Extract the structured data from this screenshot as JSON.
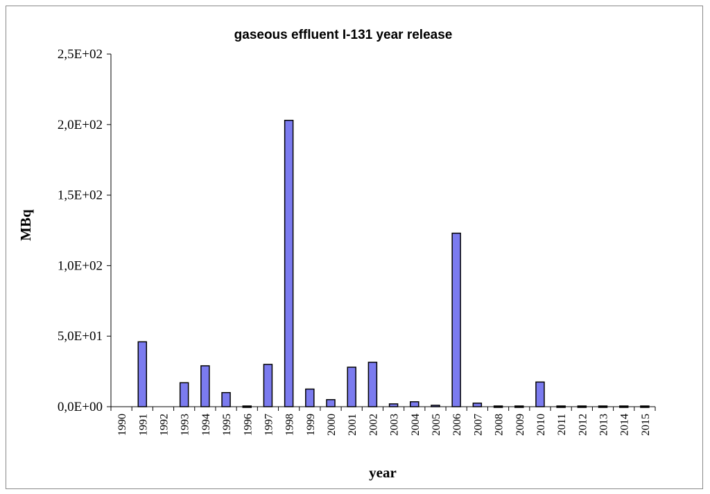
{
  "chart_data": {
    "type": "bar",
    "title": "gaseous effluent I-131 year release",
    "xlabel": "year",
    "ylabel": "MBq",
    "ylim": [
      0,
      250
    ],
    "yticks": [
      0,
      50,
      100,
      150,
      200,
      250
    ],
    "ytick_labels": [
      "0,0E+00",
      "5,0E+01",
      "1,0E+02",
      "1,5E+02",
      "2,0E+02",
      "2,5E+02"
    ],
    "categories": [
      "1990",
      "1991",
      "1992",
      "1993",
      "1994",
      "1995",
      "1996",
      "1997",
      "1998",
      "1999",
      "2000",
      "2001",
      "2002",
      "2003",
      "2004",
      "2005",
      "2006",
      "2007",
      "2008",
      "2009",
      "2010",
      "2011",
      "2012",
      "2013",
      "2014",
      "2015"
    ],
    "values": [
      0,
      46,
      0,
      17,
      29,
      10,
      0.5,
      30,
      203,
      12.5,
      5,
      28,
      31.5,
      2,
      3.5,
      1,
      123,
      2.5,
      0.5,
      0.5,
      17.5,
      0.5,
      0.5,
      0.5,
      0.5,
      0.5
    ],
    "bar_color": "#7b7bef",
    "bar_edge_color": "#000000",
    "grid": false,
    "legend": "none"
  }
}
